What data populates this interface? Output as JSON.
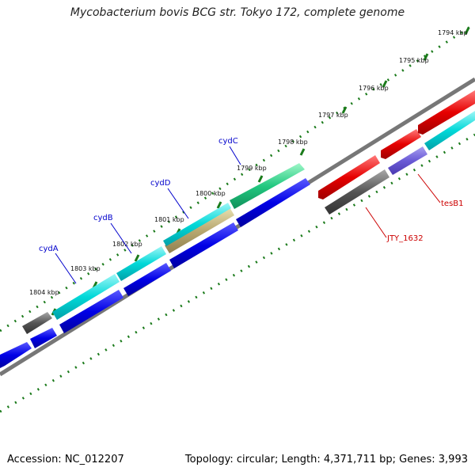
{
  "title": "Mycobacterium bovis BCG str. Tokyo 172, complete genome",
  "footer": {
    "accession": "Accession: NC_012207",
    "summary": "Topology: circular; Length: 4,371,711 bp; Genes: 3,993"
  },
  "scale_labels": [
    "1794 kbp",
    "1795 kbp",
    "1796 kbp",
    "1797 kbp",
    "1798 kbp",
    "1799 kbp",
    "1800 kbp",
    "1801 kbp",
    "1802 kbp",
    "1803 kbp",
    "1804 kbp"
  ],
  "gene_labels": {
    "cydA": "cydA",
    "cydB": "cydB",
    "cydD": "cydD",
    "cydC": "cydC",
    "jty1632": "JTY_1632",
    "tesB1": "tesB1"
  },
  "colors": {
    "cyan": "#00d8d8",
    "blue": "#0000e6",
    "red": "#e60000",
    "gray": "#555555",
    "green": "#1aa86a",
    "purple": "#6a5ad6",
    "label_blue": "#0000cc",
    "label_red": "#cc0000",
    "tick_green": "#1a7a1a"
  }
}
